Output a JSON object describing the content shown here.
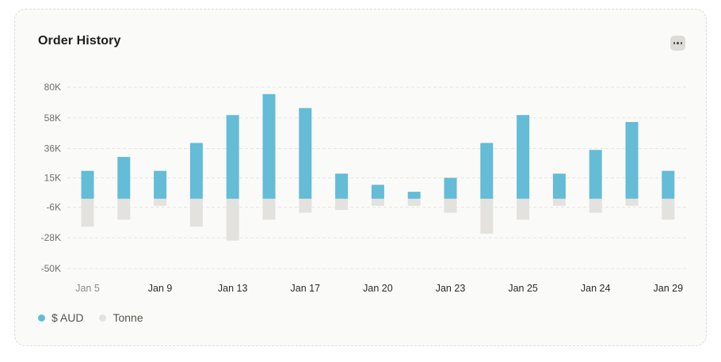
{
  "card": {
    "title": "Order History"
  },
  "chart_data": {
    "type": "bar",
    "categories": [
      "Jan 5",
      "",
      "Jan 9",
      "",
      "Jan 13",
      "",
      "Jan 17",
      "",
      "Jan 20",
      "",
      "Jan 23",
      "",
      "Jan 25",
      "",
      "Jan 24",
      "",
      "Jan 29"
    ],
    "series": [
      {
        "name": "$ AUD",
        "color": "#64bcd6",
        "values": [
          20000,
          30000,
          20000,
          40000,
          60000,
          75000,
          65000,
          18000,
          10000,
          5000,
          15000,
          40000,
          60000,
          18000,
          35000,
          55000,
          20000
        ]
      },
      {
        "name": "Tonne",
        "color": "#e3e2de",
        "values": [
          -20000,
          -15000,
          -5000,
          -20000,
          -30000,
          -15000,
          -10000,
          -8000,
          -5000,
          -5000,
          -10000,
          -25000,
          -15000,
          -5000,
          -10000,
          -5000,
          -15000
        ]
      }
    ],
    "y_ticks": [
      "80K",
      "58K",
      "36K",
      "15K",
      "-6K",
      "-28K",
      "-50K"
    ],
    "y_tick_values": [
      80000,
      58000,
      36000,
      15000,
      -6000,
      -28000,
      -50000
    ],
    "x_tick_labels": [
      "Jan 5",
      "Jan 9",
      "Jan 13",
      "Jan 17",
      "Jan 20",
      "Jan 23",
      "Jan 25",
      "Jan 24",
      "Jan 29"
    ],
    "x_tick_indices": [
      0,
      2,
      4,
      6,
      8,
      10,
      12,
      14,
      16
    ],
    "ylim": [
      -50000,
      80000
    ],
    "grid": true,
    "stacked": true,
    "legend_position": "bottom-left"
  },
  "legend": {
    "items": [
      {
        "label": "$ AUD",
        "color": "#64bcd6"
      },
      {
        "label": "Tonne",
        "color": "#e3e2de"
      }
    ]
  }
}
